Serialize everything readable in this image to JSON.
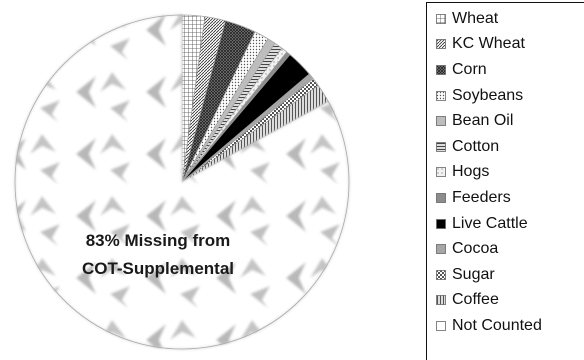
{
  "chart_data": {
    "type": "pie",
    "categories": [
      "Wheat",
      "KC Wheat",
      "Corn",
      "Soybeans",
      "Bean Oil",
      "Cotton",
      "Hogs",
      "Feeders",
      "Live Cattle",
      "Cocoa",
      "Sugar",
      "Coffee",
      "Not Counted"
    ],
    "values": [
      2.2,
      2.0,
      3.0,
      1.4,
      0.8,
      0.8,
      0.6,
      0.4,
      2.6,
      0.6,
      0.8,
      1.8,
      83.0
    ],
    "annotation": [
      "83% Missing from",
      "COT-Supplemental"
    ],
    "legend_position": "right",
    "patterns": [
      "grid",
      "diag-dense",
      "crosshatch",
      "dots",
      "fill-gray",
      "horiz-lines",
      "light-dots",
      "fill-gray-dark",
      "solid-black",
      "fill-gray-light",
      "checker",
      "vert-lines",
      "arrows"
    ]
  }
}
